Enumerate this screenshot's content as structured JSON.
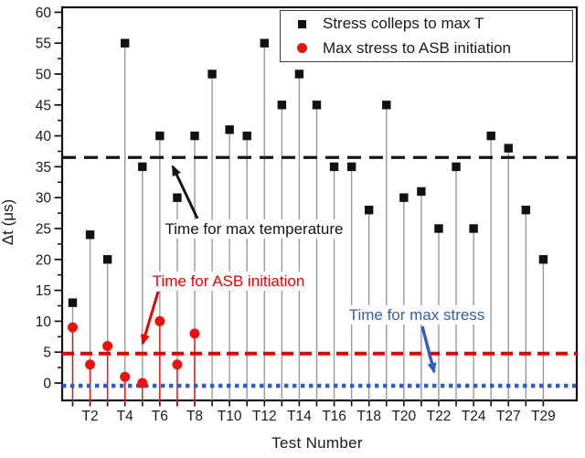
{
  "legend": {
    "items": [
      {
        "label": "Stress colleps to max T",
        "marker": "square",
        "color": "#111111"
      },
      {
        "label": "Max stress to ASB initiation",
        "marker": "circle",
        "color": "#ee0f0f"
      }
    ]
  },
  "annotations": [
    {
      "id": "max-temperature",
      "text": "Time for max temperature",
      "color": "#151515"
    },
    {
      "id": "asb-initiation",
      "text": "Time for ASB initiation",
      "color": "#ee0000"
    },
    {
      "id": "max-stress",
      "text": "Time for max stress",
      "color": "#2e5cc5"
    }
  ],
  "chart_data": {
    "type": "scatter",
    "title": "",
    "xlabel": "Test Number",
    "ylabel": "Δt (μs)",
    "ylim": [
      0,
      60
    ],
    "y_tick_step": 5,
    "y_minor_tick_step": 2.5,
    "n_tests": 28,
    "x_tick_labels": [
      "T2",
      "T4",
      "T6",
      "T8",
      "T10",
      "T12",
      "T14",
      "T16",
      "T18",
      "T20",
      "T22",
      "T24",
      "T27",
      "T29"
    ],
    "x_label_note": "labels appear on every second tick; tests run T1-T29 with some numbers skipped",
    "series": [
      {
        "name": "Stress colleps to max T",
        "marker": "square",
        "color": "#111111",
        "stem_color": "#9a9a9a",
        "values": [
          13,
          24,
          20,
          55,
          35,
          40,
          30,
          40,
          50,
          41,
          40,
          55,
          45,
          50,
          45,
          35,
          35,
          28,
          45,
          30,
          31,
          25,
          35,
          25,
          40,
          38,
          28,
          20
        ]
      },
      {
        "name": "Max stress to ASB initiation",
        "marker": "circle",
        "color": "#ee0f0f",
        "stem_color": "#ee0f0f",
        "values": [
          9,
          3,
          6,
          1,
          0,
          10,
          3,
          8
        ]
      }
    ],
    "reference_lines": [
      {
        "label": "Time for max temperature",
        "value": 36.5,
        "style": "dashed",
        "color": "#151515"
      },
      {
        "label": "Time for ASB initiation",
        "value": 5,
        "style": "dashed",
        "color": "#ee0000"
      },
      {
        "label": "Time for max stress",
        "value": 0,
        "style": "dotted",
        "color": "#2e5cc5"
      }
    ],
    "legend_position": "top-right",
    "grid": false
  }
}
